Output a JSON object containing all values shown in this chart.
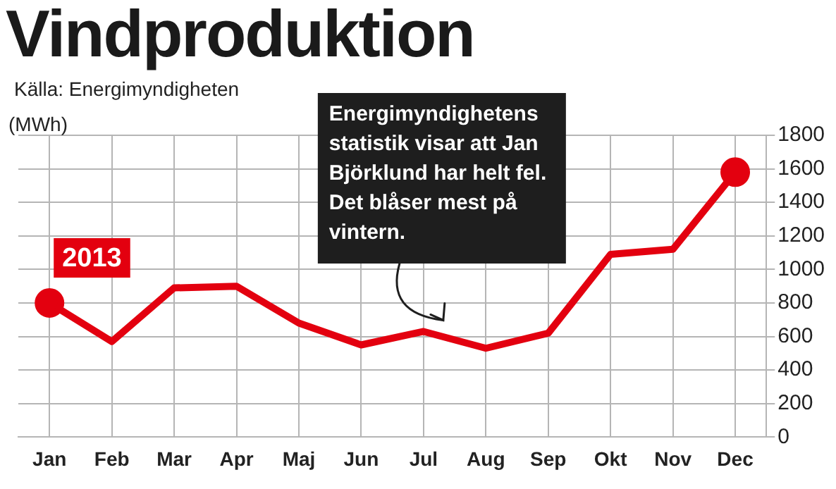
{
  "chart_data": {
    "type": "line",
    "title": "Vindproduktion",
    "subtitle": "Källa: Energimyndigheten",
    "ylabel": "(MWh)",
    "categories": [
      "Jan",
      "Feb",
      "Mar",
      "Apr",
      "Maj",
      "Jun",
      "Jul",
      "Aug",
      "Sep",
      "Okt",
      "Nov",
      "Dec"
    ],
    "series": [
      {
        "color": "#e3000f",
        "values": [
          800,
          570,
          890,
          900,
          680,
          550,
          630,
          530,
          620,
          1090,
          1120,
          1580
        ]
      }
    ],
    "ylim": [
      0,
      1800
    ],
    "yticks": [
      0,
      200,
      400,
      600,
      800,
      1000,
      1200,
      1400,
      1600,
      1800
    ],
    "grid": true,
    "legend": false,
    "line_style": "solid",
    "annotations": [
      {
        "text": "2013",
        "x": "Jan",
        "y": 800
      },
      "Energimyndighetens statistik visar att Jan Björklund har helt fel. Det blåser mest på vintern."
    ]
  }
}
